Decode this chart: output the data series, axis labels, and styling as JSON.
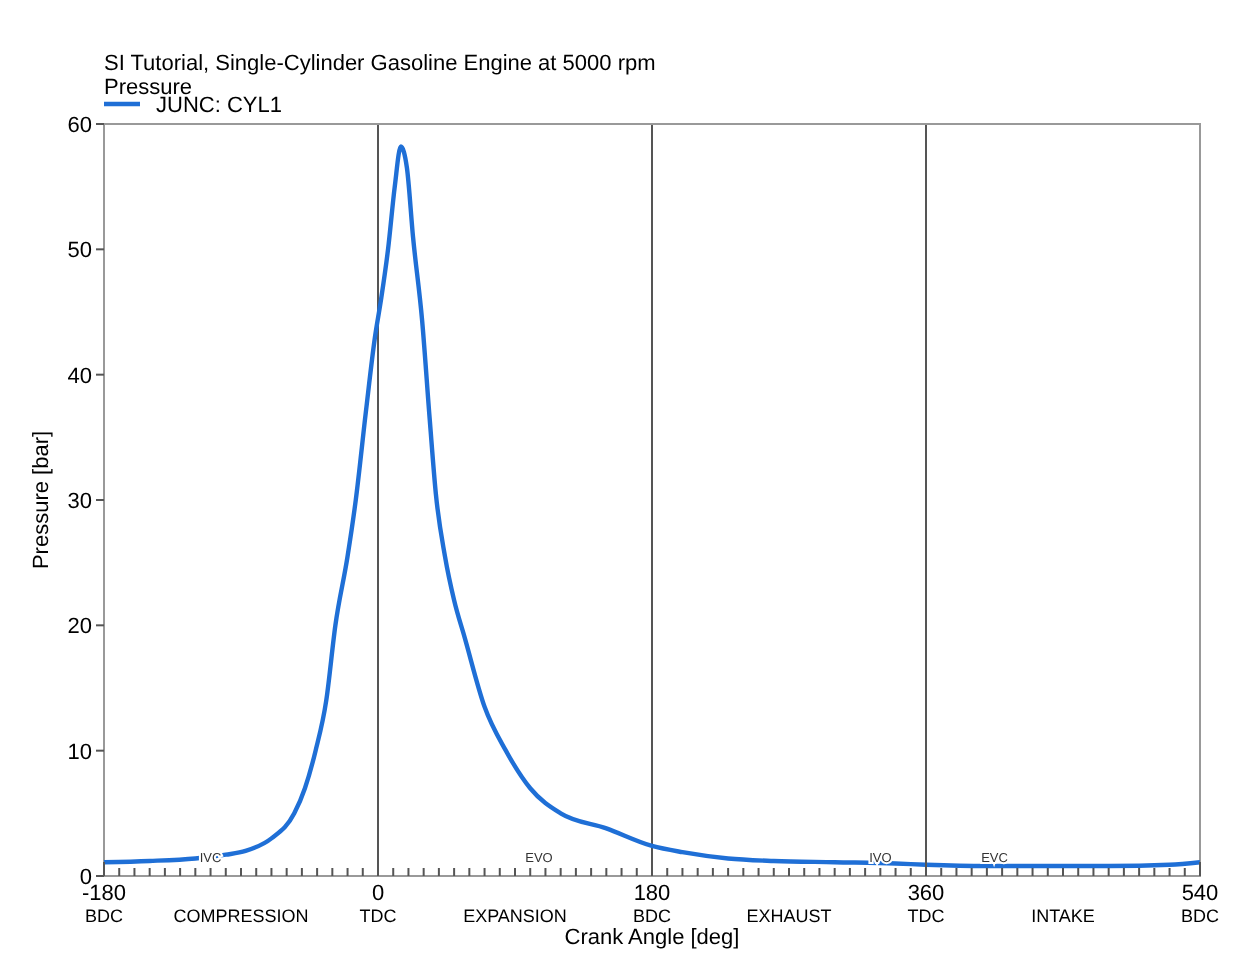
{
  "chart_data": {
    "type": "line",
    "title": "SI Tutorial, Single-Cylinder Gasoline Engine at 5000 rpm",
    "subtitle": "Pressure",
    "xlabel": "Crank Angle [deg]",
    "ylabel": "Pressure [bar]",
    "x": [
      -180,
      -150,
      -120,
      -100,
      -87,
      -70,
      -55,
      -48,
      -41,
      -34,
      -28,
      -20,
      -14.6,
      -8,
      -2,
      2,
      6.6,
      11,
      15,
      19,
      23,
      29,
      34,
      38,
      44,
      50,
      57,
      70,
      84,
      100,
      120,
      150,
      180,
      200,
      230,
      260,
      300,
      340,
      360,
      400,
      440,
      480,
      520,
      540
    ],
    "series": [
      {
        "name": "JUNC: CYL1",
        "color": "#1f6fd6",
        "values": [
          1.1,
          1.2,
          1.4,
          1.7,
          2,
          3,
          5,
          7,
          10,
          14,
          20,
          25.5,
          30,
          37,
          43,
          46,
          50,
          55,
          58.2,
          56.5,
          51,
          44.3,
          36.4,
          30.5,
          25.5,
          22,
          19,
          13.5,
          10,
          7,
          5,
          3.8,
          2.4,
          1.9,
          1.4,
          1.2,
          1.1,
          1,
          0.9,
          0.8,
          0.8,
          0.8,
          0.9,
          1.1
        ]
      }
    ],
    "xlim": [
      -180,
      540
    ],
    "ylim": [
      0,
      60
    ],
    "xticks": [
      -180,
      {
        "value": -170,
        "label": null
      },
      {
        "value": -160,
        "label": null
      },
      {
        "value": -150,
        "label": null
      },
      {
        "value": -140,
        "label": null
      },
      {
        "value": -130,
        "label": null
      },
      {
        "value": -120,
        "label": null
      },
      {
        "value": -110,
        "label": null
      },
      {
        "value": -100,
        "label": null
      },
      {
        "value": -90,
        "label": null
      },
      {
        "value": -80,
        "label": null
      },
      {
        "value": -70,
        "label": null
      },
      {
        "value": -60,
        "label": null
      },
      {
        "value": -50,
        "label": null
      },
      {
        "value": -40,
        "label": null
      },
      {
        "value": -30,
        "label": null
      },
      {
        "value": -20,
        "label": null
      },
      {
        "value": -10,
        "label": null
      },
      0,
      {
        "value": 10,
        "label": null
      },
      {
        "value": 20,
        "label": null
      },
      {
        "value": 30,
        "label": null
      },
      {
        "value": 40,
        "label": null
      },
      {
        "value": 50,
        "label": null
      },
      {
        "value": 60,
        "label": null
      },
      {
        "value": 70,
        "label": null
      },
      {
        "value": 80,
        "label": null
      },
      {
        "value": 90,
        "label": null
      },
      {
        "value": 100,
        "label": null
      },
      {
        "value": 110,
        "label": null
      },
      {
        "value": 120,
        "label": null
      },
      {
        "value": 130,
        "label": null
      },
      {
        "value": 140,
        "label": null
      },
      {
        "value": 150,
        "label": null
      },
      {
        "value": 160,
        "label": null
      },
      {
        "value": 170,
        "label": null
      },
      180,
      {
        "value": 190,
        "label": null
      },
      {
        "value": 200,
        "label": null
      },
      {
        "value": 210,
        "label": null
      },
      {
        "value": 220,
        "label": null
      },
      {
        "value": 230,
        "label": null
      },
      {
        "value": 240,
        "label": null
      },
      {
        "value": 250,
        "label": null
      },
      {
        "value": 260,
        "label": null
      },
      {
        "value": 270,
        "label": null
      },
      {
        "value": 280,
        "label": null
      },
      {
        "value": 290,
        "label": null
      },
      {
        "value": 300,
        "label": null
      },
      {
        "value": 310,
        "label": null
      },
      {
        "value": 320,
        "label": null
      },
      {
        "value": 330,
        "label": null
      },
      {
        "value": 340,
        "label": null
      },
      {
        "value": 350,
        "label": null
      },
      360,
      {
        "value": 370,
        "label": null
      },
      {
        "value": 380,
        "label": null
      },
      {
        "value": 390,
        "label": null
      },
      {
        "value": 400,
        "label": null
      },
      {
        "value": 410,
        "label": null
      },
      {
        "value": 420,
        "label": null
      },
      {
        "value": 430,
        "label": null
      },
      {
        "value": 440,
        "label": null
      },
      {
        "value": 450,
        "label": null
      },
      {
        "value": 460,
        "label": null
      },
      {
        "value": 470,
        "label": null
      },
      {
        "value": 480,
        "label": null
      },
      {
        "value": 490,
        "label": null
      },
      {
        "value": 500,
        "label": null
      },
      {
        "value": 510,
        "label": null
      },
      {
        "value": 520,
        "label": null
      },
      {
        "value": 530,
        "label": null
      },
      540
    ],
    "yticks": [
      0,
      10,
      20,
      30,
      40,
      50,
      60
    ],
    "ref_lines": [
      {
        "axis": "x",
        "value": 0,
        "color": "#555555"
      },
      {
        "axis": "x",
        "value": 180,
        "color": "#555555"
      },
      {
        "axis": "x",
        "value": 360,
        "color": "#555555"
      }
    ],
    "annotations": [
      "BDC",
      "COMPRESSION",
      "TDC",
      "EXPANSION",
      "BDC",
      "EXHAUST",
      "TDC",
      "INTAKE",
      "BDC",
      {
        "text": "IVC",
        "x": -110
      },
      "EVO",
      {
        "text": "IVO",
        "x": 330
      },
      {
        "text": "EVC",
        "x": 405
      }
    ],
    "legend": "top left",
    "grid": false,
    "line_style": "solid",
    "marker": "none"
  }
}
